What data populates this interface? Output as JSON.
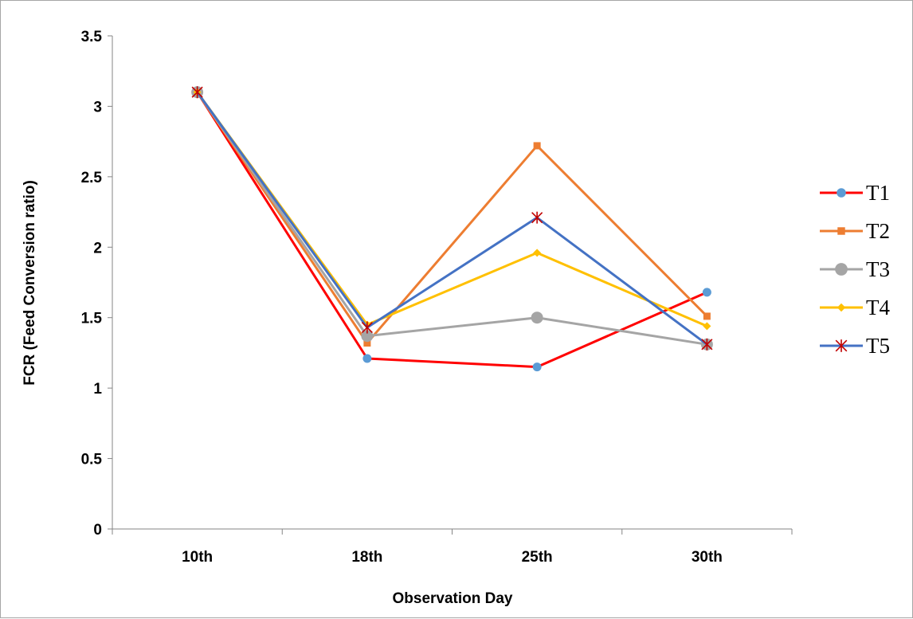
{
  "chart_data": {
    "type": "line",
    "title": "",
    "xlabel": "Observation Day",
    "ylabel": "FCR (Feed Conversion ratio)",
    "categories": [
      "10th",
      "18th",
      "25th",
      "30th"
    ],
    "ylim": [
      0,
      3.5
    ],
    "yticks": [
      0,
      0.5,
      1,
      1.5,
      2,
      2.5,
      3,
      3.5
    ],
    "ytick_labels": [
      "0",
      "0.5",
      "1",
      "1.5",
      "2",
      "2.5",
      "3",
      "3.5"
    ],
    "grid": false,
    "legend_position": "right",
    "series": [
      {
        "name": "T1",
        "values": [
          3.1,
          1.21,
          1.15,
          1.68
        ],
        "color": "#ff0000",
        "marker": "circle",
        "marker_color": "#5b9bd5"
      },
      {
        "name": "T2",
        "values": [
          3.1,
          1.32,
          2.72,
          1.51
        ],
        "color": "#ed7d31",
        "marker": "square",
        "marker_color": "#ed7d31"
      },
      {
        "name": "T3",
        "values": [
          3.1,
          1.37,
          1.5,
          1.31
        ],
        "color": "#a5a5a5",
        "marker": "big-circle",
        "marker_color": "#a5a5a5"
      },
      {
        "name": "T4",
        "values": [
          3.1,
          1.45,
          1.96,
          1.44
        ],
        "color": "#ffc000",
        "marker": "diamond",
        "marker_color": "#ffc000"
      },
      {
        "name": "T5",
        "values": [
          3.1,
          1.43,
          2.21,
          1.31
        ],
        "color": "#4472c4",
        "marker": "star",
        "marker_color": "#c00000"
      }
    ]
  }
}
